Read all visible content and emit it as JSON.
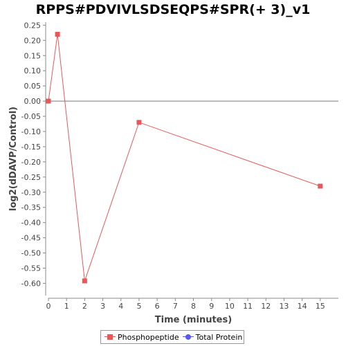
{
  "chart_data": {
    "type": "line",
    "title": "RPPS#PDVIVLSDSEQPS#SPR(+ 3)_v1",
    "xlabel": "Time (minutes)",
    "ylabel": "log2(dDAVP/Control)",
    "xlim": [
      0,
      16
    ],
    "ylim": [
      -0.64,
      0.26
    ],
    "xticks": [
      "0",
      "1",
      "2",
      "3",
      "4",
      "5",
      "6",
      "7",
      "8",
      "9",
      "10",
      "11",
      "12",
      "13",
      "14",
      "15"
    ],
    "yticks": [
      "0.25",
      "0.20",
      "0.15",
      "0.10",
      "0.05",
      "0.00",
      "-0.05",
      "-0.10",
      "-0.15",
      "-0.20",
      "-0.25",
      "-0.30",
      "-0.35",
      "-0.40",
      "-0.45",
      "-0.50",
      "-0.55",
      "-0.60"
    ],
    "grid": false,
    "legend_position": "bottom",
    "series": [
      {
        "name": "Phosphopeptide",
        "color": "#e8575a",
        "marker": "square",
        "x": [
          0,
          0.5,
          2,
          5,
          15
        ],
        "y": [
          0.0,
          0.22,
          -0.592,
          -0.07,
          -0.28
        ]
      },
      {
        "name": "Total Protein",
        "color": "#5a5ae8",
        "marker": "circle",
        "x": [],
        "y": []
      }
    ]
  }
}
